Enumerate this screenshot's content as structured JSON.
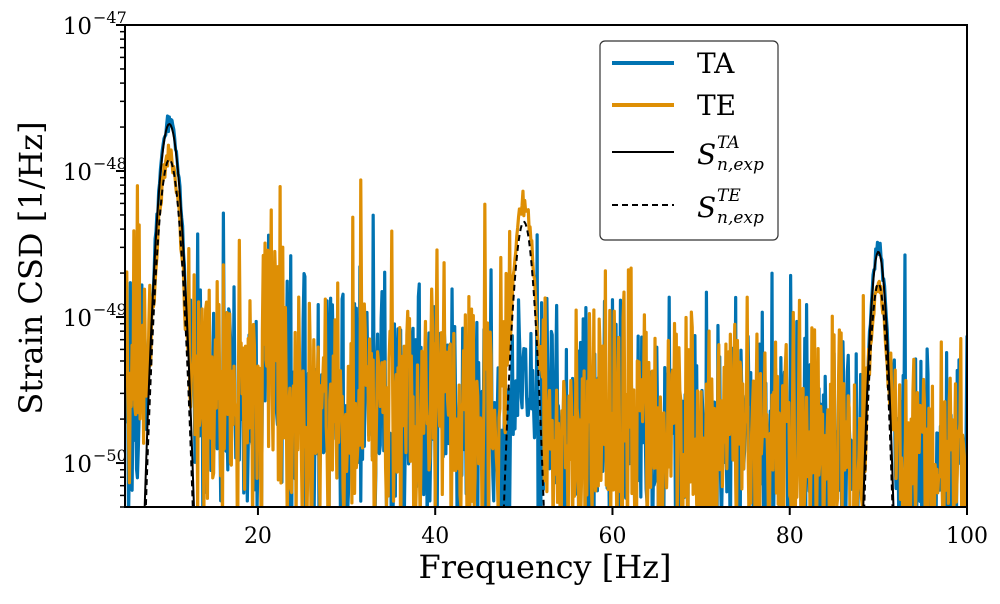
{
  "chart_data": {
    "type": "line",
    "xlabel": "Frequency [Hz]",
    "ylabel": "Strain CSD [1/Hz]",
    "xlim": [
      5,
      100
    ],
    "ylim": [
      5e-51,
      1e-47
    ],
    "yscale": "log",
    "x_ticks": [
      20,
      40,
      60,
      80,
      100
    ],
    "x_tick_labels": [
      "20",
      "40",
      "60",
      "80",
      "100"
    ],
    "y_ticks": [
      {
        "value": 1e-50,
        "base": "10",
        "exp": "−50"
      },
      {
        "value": 1e-49,
        "base": "10",
        "exp": "−49"
      },
      {
        "value": 1e-48,
        "base": "10",
        "exp": "−48"
      },
      {
        "value": 1e-47,
        "base": "10",
        "exp": "−47"
      }
    ],
    "grid": false,
    "legend_position": "top-right",
    "series": [
      {
        "name": "TA",
        "color": "#0173b2",
        "style": "noisy",
        "peaks": [
          {
            "freq": 10,
            "height": 2.1e-48,
            "width": 0.8
          },
          {
            "freq": 50,
            "height": 2e-50,
            "width": 0.7
          },
          {
            "freq": 90,
            "height": 3e-49,
            "width": 0.6
          }
        ],
        "background": [
          [
            5,
            3e-50
          ],
          [
            20,
            2.6e-50
          ],
          [
            40,
            2e-50
          ],
          [
            60,
            1.6e-50
          ],
          [
            80,
            1.3e-50
          ],
          [
            100,
            1.1e-50
          ]
        ]
      },
      {
        "name": "TE",
        "color": "#de8f05",
        "style": "noisy",
        "peaks": [
          {
            "freq": 10,
            "height": 1.3e-48,
            "width": 0.8
          },
          {
            "freq": 50,
            "height": 6e-49,
            "width": 0.75
          },
          {
            "freq": 90,
            "height": 1.7e-49,
            "width": 0.6
          }
        ],
        "background": [
          [
            5,
            3.5e-50
          ],
          [
            20,
            3e-50
          ],
          [
            40,
            2.3e-50
          ],
          [
            60,
            1.8e-50
          ],
          [
            80,
            1.5e-50
          ],
          [
            100,
            1.3e-50
          ]
        ]
      },
      {
        "name_base": "S",
        "name_sub": "n,exp",
        "name_sup": "TA",
        "color": "#000000",
        "style": "solid",
        "peaks": [
          {
            "freq": 10,
            "height": 2.1e-48,
            "width": 0.8
          },
          {
            "freq": 90,
            "height": 2.8e-49,
            "width": 0.6
          }
        ]
      },
      {
        "name_base": "S",
        "name_sub": "n,exp",
        "name_sup": "TE",
        "color": "#000000",
        "style": "dashed",
        "peaks": [
          {
            "freq": 10,
            "height": 1.2e-48,
            "width": 0.8
          },
          {
            "freq": 50,
            "height": 4.5e-49,
            "width": 0.75
          },
          {
            "freq": 90,
            "height": 1.7e-49,
            "width": 0.6
          }
        ]
      }
    ]
  }
}
